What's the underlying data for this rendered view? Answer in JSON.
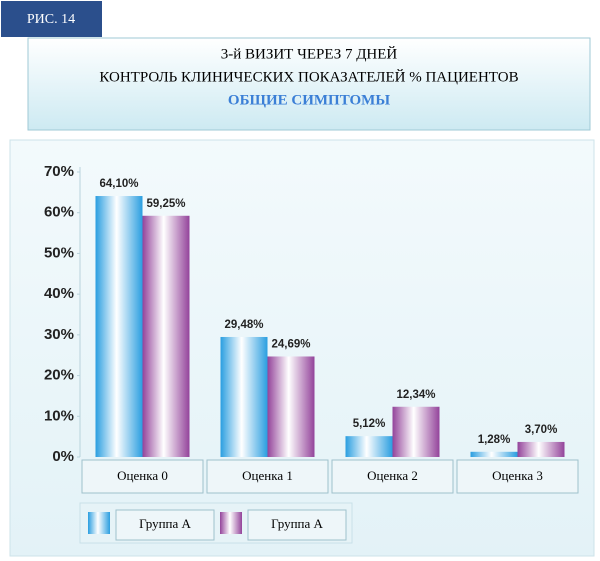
{
  "figure_label": "РИС. 14",
  "chart_data": {
    "type": "bar",
    "title_lines": [
      "3-й ВИЗИТ ЧЕРЕЗ 7 ДНЕЙ",
      "КОНТРОЛЬ КЛИНИЧЕСКИХ ПОКАЗАТЕЛЕЙ % ПАЦИЕНТОВ",
      "ОБЩИЕ СИМПТОМЫ"
    ],
    "categories": [
      "Оценка 0",
      "Оценка 1",
      "Оценка 2",
      "Оценка 3"
    ],
    "series": [
      {
        "name": "Группа А",
        "color": "#2a9ee0",
        "values": [
          64.1,
          29.48,
          5.12,
          1.28
        ],
        "value_labels": [
          "64,10%",
          "29,48%",
          "5,12%",
          "1,28%"
        ]
      },
      {
        "name": "Группа А",
        "color": "#93439a",
        "values": [
          59.25,
          24.69,
          12.34,
          3.7
        ],
        "value_labels": [
          "59,25%",
          "24,69%",
          "12,34%",
          "3,70%"
        ]
      }
    ],
    "ylim": [
      0,
      70
    ],
    "yticks": [
      {
        "value": 0,
        "label": "0%"
      },
      {
        "value": 10,
        "label": "10%"
      },
      {
        "value": 20,
        "label": "20%"
      },
      {
        "value": 30,
        "label": "30%"
      },
      {
        "value": 40,
        "label": "40%"
      },
      {
        "value": 50,
        "label": "50%"
      },
      {
        "value": 60,
        "label": "60%"
      },
      {
        "value": 70,
        "label": "70%"
      }
    ],
    "grid": false
  }
}
